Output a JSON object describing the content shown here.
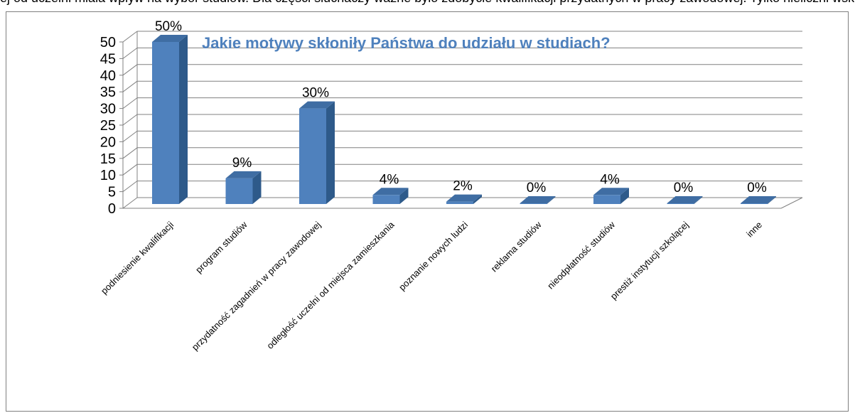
{
  "clipped_text": "ej od uczelni miała wpływ na wybór studiów. Dla części słuchaczy ważne było zdobycie kwalifikacji przydatnych w pracy zawodowej. Tylko nieliczni wskazali inne motywy",
  "chart_data": {
    "type": "bar",
    "title": "Jakie motywy skłoniły Państwa do udziału w studiach?",
    "categories": [
      "podniesienie kwalifikacji",
      "program studiów",
      "przydatność zagadnień w pracy zawodowej",
      "odległość uczelni od miejsca zamieszkania",
      "poznanie nowych ludzi",
      "reklama studiów",
      "nieodpłatność studiów",
      "prestiż instytucji szkolącej",
      "inne"
    ],
    "values": [
      50,
      9,
      30,
      4,
      2,
      0,
      4,
      0,
      0
    ],
    "data_labels": [
      "50%",
      "9%",
      "30%",
      "4%",
      "2%",
      "0%",
      "4%",
      "0%",
      "0%"
    ],
    "y_ticks": [
      "0",
      "5",
      "10",
      "15",
      "20",
      "25",
      "30",
      "35",
      "40",
      "45",
      "50"
    ],
    "ylim": [
      0,
      50
    ],
    "grid": true,
    "legend": "none",
    "colors": {
      "bar_front": "#4f81bd",
      "bar_side": "#2e5a8a",
      "bar_top": "#3f6da3",
      "title": "#4f81bd",
      "grid": "#808080"
    }
  }
}
